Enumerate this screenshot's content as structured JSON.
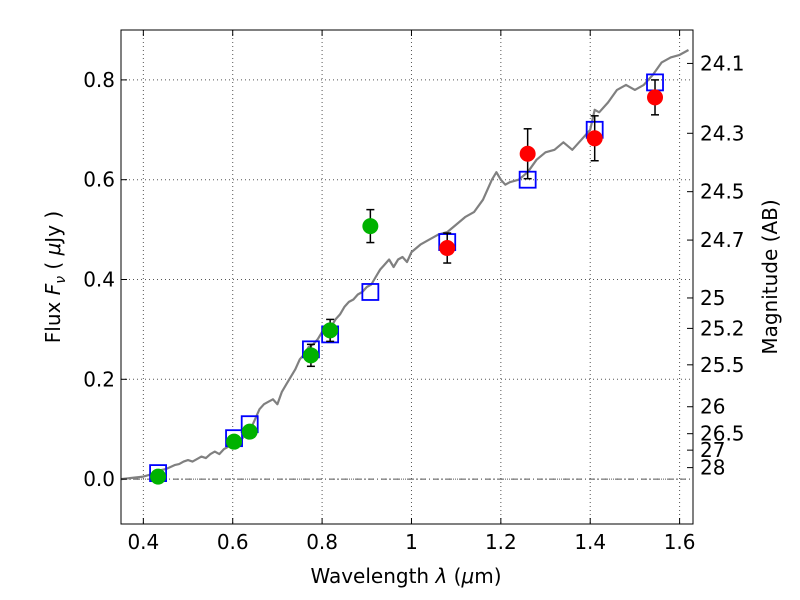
{
  "chart_data": {
    "type": "scatter",
    "xlabel": "Wavelength  λ (μm)",
    "ylabel": "Flux  F_ν  ( μJy )",
    "y2label": "Magnitude (AB)",
    "xlim": [
      0.35,
      1.63
    ],
    "ylim": [
      -0.09,
      0.9
    ],
    "grid": true,
    "x_ticks": [
      0.4,
      0.6,
      0.8,
      1.0,
      1.2,
      1.4,
      1.6
    ],
    "x_tick_labels": [
      "0.4",
      "0.6",
      "0.8",
      "1",
      "1.2",
      "1.4",
      "1.6"
    ],
    "y_ticks": [
      0.0,
      0.2,
      0.4,
      0.6,
      0.8
    ],
    "y_tick_labels": [
      "0.0",
      "0.2",
      "0.4",
      "0.6",
      "0.8"
    ],
    "y2_ticks": [
      {
        "label": "24.1",
        "flux": 0.833
      },
      {
        "label": "24.3",
        "flux": 0.693
      },
      {
        "label": "24.5",
        "flux": 0.576
      },
      {
        "label": "24.7",
        "flux": 0.479
      },
      {
        "label": "25",
        "flux": 0.363
      },
      {
        "label": "25.2",
        "flux": 0.302
      },
      {
        "label": "25.5",
        "flux": 0.229
      },
      {
        "label": "26",
        "flux": 0.145
      },
      {
        "label": "26.5",
        "flux": 0.091
      },
      {
        "label": "27",
        "flux": 0.058
      },
      {
        "label": "28",
        "flux": 0.023
      }
    ],
    "colors": {
      "model": "#808080",
      "model_photometry": "#0000ff",
      "optical": "#00b200",
      "nir": "#ff0000",
      "errorbar": "#000000",
      "zero_line": "#555555",
      "grid": "#555555"
    },
    "series": [
      {
        "kind": "line",
        "x": [
          0.35,
          0.37,
          0.39,
          0.4,
          0.42,
          0.43,
          0.44,
          0.45,
          0.46,
          0.47,
          0.48,
          0.49,
          0.5,
          0.51,
          0.52,
          0.53,
          0.54,
          0.55,
          0.56,
          0.57,
          0.58,
          0.59,
          0.6,
          0.61,
          0.62,
          0.63,
          0.64,
          0.65,
          0.66,
          0.67,
          0.68,
          0.69,
          0.7,
          0.71,
          0.72,
          0.73,
          0.74,
          0.75,
          0.76,
          0.77,
          0.78,
          0.79,
          0.8,
          0.81,
          0.82,
          0.83,
          0.84,
          0.85,
          0.86,
          0.87,
          0.88,
          0.89,
          0.9,
          0.91,
          0.92,
          0.93,
          0.94,
          0.95,
          0.96,
          0.97,
          0.98,
          0.99,
          1.0,
          1.02,
          1.04,
          1.06,
          1.08,
          1.1,
          1.12,
          1.14,
          1.16,
          1.18,
          1.19,
          1.2,
          1.21,
          1.22,
          1.24,
          1.26,
          1.28,
          1.3,
          1.32,
          1.34,
          1.36,
          1.38,
          1.4,
          1.41,
          1.42,
          1.44,
          1.46,
          1.48,
          1.5,
          1.52,
          1.54,
          1.56,
          1.58,
          1.6,
          1.62
        ],
        "y": [
          0.0,
          0.002,
          0.004,
          0.005,
          0.01,
          0.012,
          0.018,
          0.02,
          0.024,
          0.028,
          0.03,
          0.035,
          0.038,
          0.035,
          0.04,
          0.045,
          0.042,
          0.05,
          0.055,
          0.05,
          0.06,
          0.065,
          0.07,
          0.072,
          0.08,
          0.09,
          0.1,
          0.12,
          0.14,
          0.15,
          0.155,
          0.16,
          0.15,
          0.175,
          0.19,
          0.205,
          0.22,
          0.24,
          0.25,
          0.265,
          0.27,
          0.28,
          0.295,
          0.3,
          0.305,
          0.32,
          0.33,
          0.345,
          0.355,
          0.36,
          0.37,
          0.375,
          0.385,
          0.39,
          0.405,
          0.42,
          0.43,
          0.44,
          0.425,
          0.44,
          0.445,
          0.435,
          0.455,
          0.47,
          0.48,
          0.49,
          0.495,
          0.51,
          0.525,
          0.535,
          0.56,
          0.6,
          0.615,
          0.6,
          0.59,
          0.595,
          0.6,
          0.615,
          0.64,
          0.655,
          0.66,
          0.675,
          0.66,
          0.68,
          0.7,
          0.74,
          0.735,
          0.755,
          0.78,
          0.79,
          0.78,
          0.79,
          0.81,
          0.835,
          0.845,
          0.85,
          0.86
        ]
      },
      {
        "kind": "squares",
        "points": [
          [
            0.433,
            0.012
          ],
          [
            0.603,
            0.082
          ],
          [
            0.638,
            0.11
          ],
          [
            0.775,
            0.26
          ],
          [
            0.818,
            0.29
          ],
          [
            0.908,
            0.375
          ],
          [
            1.08,
            0.475
          ],
          [
            1.26,
            0.6
          ],
          [
            1.41,
            0.7
          ],
          [
            1.545,
            0.795
          ]
        ]
      },
      {
        "kind": "circles",
        "color": "optical",
        "points": [
          {
            "x": 0.433,
            "y": 0.005,
            "err": 0.0
          },
          {
            "x": 0.603,
            "y": 0.075,
            "err": 0.01
          },
          {
            "x": 0.638,
            "y": 0.095,
            "err": 0.012
          },
          {
            "x": 0.775,
            "y": 0.248,
            "err": 0.022
          },
          {
            "x": 0.818,
            "y": 0.298,
            "err": 0.022
          },
          {
            "x": 0.908,
            "y": 0.507,
            "err": 0.033
          }
        ]
      },
      {
        "kind": "circles",
        "color": "nir",
        "points": [
          {
            "x": 1.08,
            "y": 0.463,
            "err": 0.03
          },
          {
            "x": 1.26,
            "y": 0.652,
            "err": 0.05
          },
          {
            "x": 1.41,
            "y": 0.683,
            "err": 0.045
          },
          {
            "x": 1.545,
            "y": 0.765,
            "err": 0.035
          }
        ]
      }
    ]
  }
}
